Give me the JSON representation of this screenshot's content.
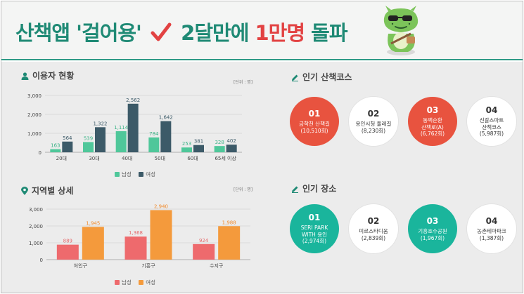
{
  "header": {
    "title_part1": "산책앱 '걸어용'",
    "title_part2": "2달만에",
    "title_part3": "1만명",
    "title_part4": "돌파"
  },
  "colors": {
    "green": "#1f8a75",
    "red": "#e24242",
    "male_green": "#4fc79a",
    "female_navy": "#3c5a68",
    "male_red": "#ee6a6d",
    "female_orange": "#f49a3c",
    "circle_red": "#e8533f",
    "circle_teal": "#1ab59c"
  },
  "users_section": {
    "title": "이용자 현황",
    "icon": "person-icon",
    "unit": "[단위 : 명]"
  },
  "region_section": {
    "title": "지역별 상세",
    "icon": "map-pin-icon",
    "unit": "[단위 : 명]"
  },
  "courses_section": {
    "title": "인기 산책코스",
    "icon": "pencil-icon",
    "items": [
      {
        "rank": "01",
        "name": "금학천 산책길",
        "count": "(10,510회)",
        "style": "red"
      },
      {
        "rank": "02",
        "name": "용인시청 둘레길",
        "count": "(8,230회)",
        "style": "white"
      },
      {
        "rank": "03",
        "name": "동백순환\n산책로(A)",
        "count": "(6,762회)",
        "style": "red"
      },
      {
        "rank": "04",
        "name": "신갈스마트\n산책코스",
        "count": "(5,987회)",
        "style": "white"
      }
    ]
  },
  "places_section": {
    "title": "인기 장소",
    "icon": "pencil-icon",
    "items": [
      {
        "rank": "01",
        "name": "SERI PARK\nWITH 용인",
        "count": "(2,974회)",
        "style": "teal"
      },
      {
        "rank": "02",
        "name": "미르스타디움",
        "count": "(2,839회)",
        "style": "white"
      },
      {
        "rank": "03",
        "name": "기흥호수공원",
        "count": "(1,967회)",
        "style": "teal"
      },
      {
        "rank": "04",
        "name": "농촌테마파크",
        "count": "(1,387회)",
        "style": "white"
      }
    ]
  },
  "chart_data": [
    {
      "type": "bar",
      "categories": [
        "20대",
        "30대",
        "40대",
        "50대",
        "60대",
        "65세 이상"
      ],
      "series": [
        {
          "name": "남성",
          "values": [
            163,
            539,
            1114,
            784,
            253,
            328
          ],
          "color": "#4fc79a"
        },
        {
          "name": "여성",
          "values": [
            564,
            1322,
            2562,
            1642,
            381,
            402
          ],
          "color": "#3c5a68"
        }
      ],
      "yticks": [
        "0",
        "1,000",
        "2,000",
        "3,000"
      ],
      "ylim": [
        0,
        3000
      ],
      "legend": "bottom-center"
    },
    {
      "type": "bar",
      "categories": [
        "처인구",
        "기흥구",
        "수지구"
      ],
      "series": [
        {
          "name": "남성",
          "values": [
            889,
            1368,
            924
          ],
          "color": "#ee6a6d"
        },
        {
          "name": "여성",
          "values": [
            1945,
            2940,
            1988
          ],
          "color": "#f49a3c"
        }
      ],
      "yticks": [
        "0",
        "1,000",
        "2,000",
        "3,000"
      ],
      "ylim": [
        0,
        3000
      ],
      "legend": "bottom-center"
    }
  ]
}
